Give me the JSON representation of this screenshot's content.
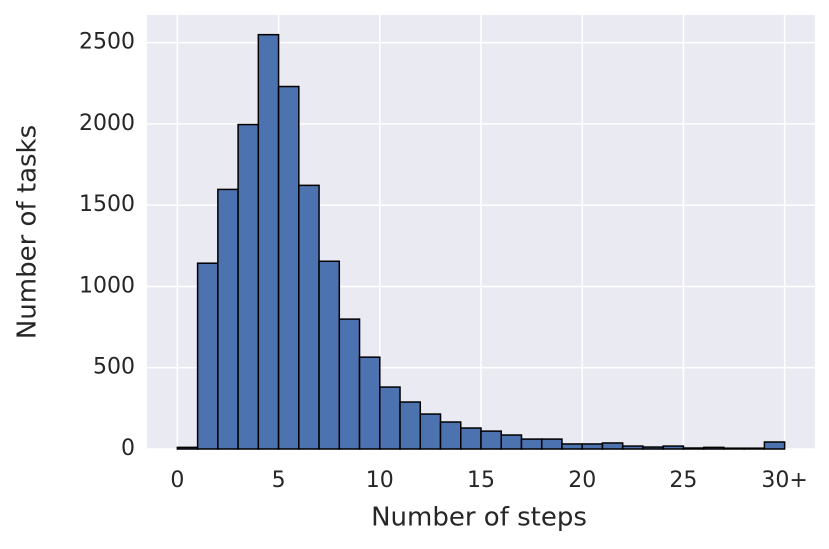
{
  "chart_data": {
    "type": "histogram",
    "x_label": "Number of steps",
    "y_label": "Number of tasks",
    "bins": [
      0,
      1,
      2,
      3,
      4,
      5,
      6,
      7,
      8,
      9,
      10,
      11,
      12,
      13,
      14,
      15,
      16,
      17,
      18,
      19,
      20,
      21,
      22,
      23,
      24,
      25,
      26,
      27,
      28,
      29,
      30
    ],
    "values": [
      10,
      1143,
      1597,
      1996,
      2549,
      2230,
      1622,
      1155,
      799,
      565,
      381,
      289,
      215,
      166,
      129,
      110,
      86,
      61,
      61,
      31,
      31,
      37,
      18,
      12,
      18,
      6,
      10,
      5,
      5,
      43
    ],
    "color": "#4c72b0",
    "edgecolor": "#000000",
    "xlim": [
      -1.5,
      31.5
    ],
    "ylim": [
      0,
      2670
    ],
    "xticks": [
      0,
      5,
      10,
      15,
      20,
      25,
      {
        "value": 30,
        "label": "30+"
      }
    ],
    "yticks": [
      0,
      500,
      1000,
      1500,
      2000,
      2500
    ],
    "grid": true
  }
}
